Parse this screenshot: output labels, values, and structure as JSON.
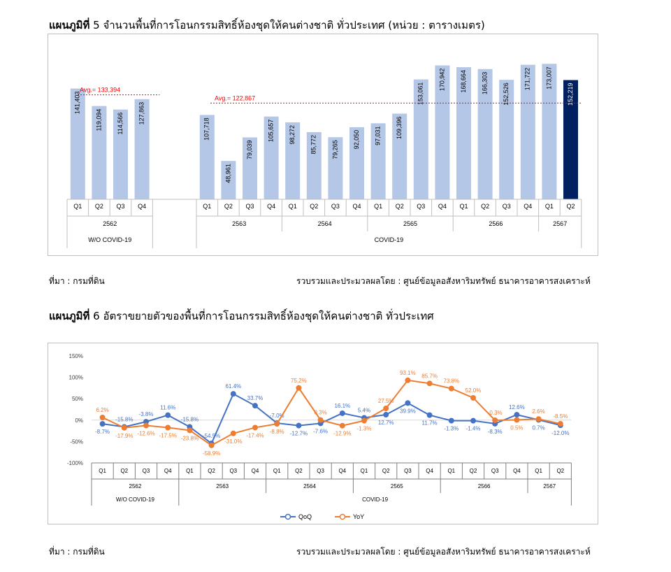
{
  "chart1": {
    "title_bold": "แผนภูมิที่",
    "title_rest": "5 จำนวนพื้นที่การโอนกรรมสิทธิ์ห้องชุดให้คนต่างชาติ ทั่วประเทศ (หน่วย : ตารางเมตร)",
    "source_left": "ที่มา : กรมที่ดิน",
    "source_right": "รวบรวมและประมวลผลโดย : ศูนย์ข้อมูลอสังหาริมทรัพย์ ธนาคารอาคารสงเคราะห์",
    "colors": {
      "bar": "#b4c7e7",
      "highlight": "#002060",
      "avg": "#ff0000"
    }
  },
  "chart2": {
    "title_bold": "แผนภูมิที่",
    "title_rest": "6 อัตราขยายตัวของพื้นที่การโอนกรรมสิทธิ์ห้องชุดให้คนต่างชาติ ทั่วประเทศ",
    "source_left": "ที่มา : กรมที่ดิน",
    "source_right": "รวบรวมและประมวลผลโดย : ศูนย์ข้อมูลอสังหาริมทรัพย์ ธนาคารอาคารสงเคราะห์",
    "colors": {
      "qoq": "#4472c4",
      "yoy": "#ed7d31"
    }
  },
  "chart_data": [
    {
      "type": "bar",
      "groups": [
        {
          "label": "W/O COVID-19",
          "years": [
            {
              "year": "2562",
              "quarters": [
                "Q1",
                "Q2",
                "Q3",
                "Q4"
              ]
            }
          ],
          "values": [
            141403,
            119094,
            114566,
            127863
          ],
          "value_labels": [
            "141,403",
            "119,094",
            "114,566",
            "127,863"
          ],
          "average": {
            "label": "Avg.= 133,394",
            "value": 133394
          }
        },
        {
          "label": "COVID-19",
          "years": [
            {
              "year": "2563",
              "quarters": [
                "Q1",
                "Q2",
                "Q3",
                "Q4"
              ]
            },
            {
              "year": "2564",
              "quarters": [
                "Q1",
                "Q2",
                "Q3",
                "Q4"
              ]
            },
            {
              "year": "2565",
              "quarters": [
                "Q1",
                "Q2",
                "Q3",
                "Q4"
              ]
            },
            {
              "year": "2566",
              "quarters": [
                "Q1",
                "Q2",
                "Q3",
                "Q4"
              ]
            },
            {
              "year": "2567",
              "quarters": [
                "Q1",
                "Q2"
              ]
            }
          ],
          "values": [
            107718,
            48961,
            79039,
            105657,
            98272,
            85772,
            79265,
            92050,
            97031,
            109396,
            153061,
            170942,
            168664,
            166303,
            152526,
            171722,
            173007,
            152219
          ],
          "value_labels": [
            "107,718",
            "48,961",
            "79,039",
            "105,657",
            "98,272",
            "85,772",
            "79,265",
            "92,050",
            "97,031",
            "109,396",
            "153,061",
            "170,942",
            "168,664",
            "166,303",
            "152,526",
            "171,722",
            "173,007",
            "152,219"
          ],
          "average": {
            "label": "Avg.= 122,867",
            "value": 122867
          },
          "highlight_last": true
        }
      ]
    },
    {
      "type": "line",
      "yticks": [
        "150%",
        "100%",
        "50%",
        "0%",
        "-50%",
        "-100%"
      ],
      "ylim": [
        -100,
        150
      ],
      "years": [
        {
          "year": "2562",
          "quarters": [
            "Q1",
            "Q2",
            "Q3",
            "Q4"
          ]
        },
        {
          "year": "2563",
          "quarters": [
            "Q1",
            "Q2",
            "Q3",
            "Q4"
          ]
        },
        {
          "year": "2564",
          "quarters": [
            "Q1",
            "Q2",
            "Q3",
            "Q4"
          ]
        },
        {
          "year": "2565",
          "quarters": [
            "Q1",
            "Q2",
            "Q3",
            "Q4"
          ]
        },
        {
          "year": "2566",
          "quarters": [
            "Q1",
            "Q2",
            "Q3",
            "Q4"
          ]
        },
        {
          "year": "2567",
          "quarters": [
            "Q1",
            "Q2"
          ]
        }
      ],
      "groups": [
        {
          "label": "W/O COVID-19",
          "count": 4
        },
        {
          "label": "COVID-19",
          "count": 18
        }
      ],
      "series": [
        {
          "name": "QoQ",
          "values": [
            -8.7,
            -15.8,
            -3.8,
            11.6,
            -15.8,
            -54.5,
            61.4,
            33.7,
            -7.0,
            -12.7,
            -7.6,
            16.1,
            5.4,
            12.7,
            39.9,
            11.7,
            -1.3,
            -1.4,
            -8.3,
            12.6,
            0.7,
            -12.0
          ],
          "labels": [
            "-8.7%",
            "-15.8%",
            "-3.8%",
            "11.6%",
            "-15.8%",
            "-54.5%",
            "61.4%",
            "33.7%",
            "-7.0%",
            "-12.7%",
            "-7.6%",
            "16.1%",
            "5.4%",
            "12.7%",
            "39.9%",
            "11.7%",
            "-1.3%",
            "-1.4%",
            "-8.3%",
            "12.6%",
            "0.7%",
            "-12.0%"
          ]
        },
        {
          "name": "YoY",
          "values": [
            6.2,
            -17.9,
            -12.6,
            -17.5,
            -23.8,
            -58.9,
            -31.0,
            -17.4,
            -8.8,
            75.2,
            0.3,
            -12.9,
            -1.3,
            27.5,
            93.1,
            85.7,
            73.8,
            52.0,
            -0.3,
            0.5,
            2.6,
            -8.5
          ],
          "labels": [
            "6.2%",
            "-17.9%",
            "-12.6%",
            "-17.5%",
            "-23.8%",
            "-58.9%",
            "-31.0%",
            "-17.4%",
            "-8.8%",
            "75.2%",
            "0.3%",
            "-12.9%",
            "-1.3%",
            "27.5%",
            "93.1%",
            "85.7%",
            "73.8%",
            "52.0%",
            "-0.3%",
            "0.5%",
            "2.6%",
            "-8.5%"
          ]
        }
      ]
    }
  ]
}
